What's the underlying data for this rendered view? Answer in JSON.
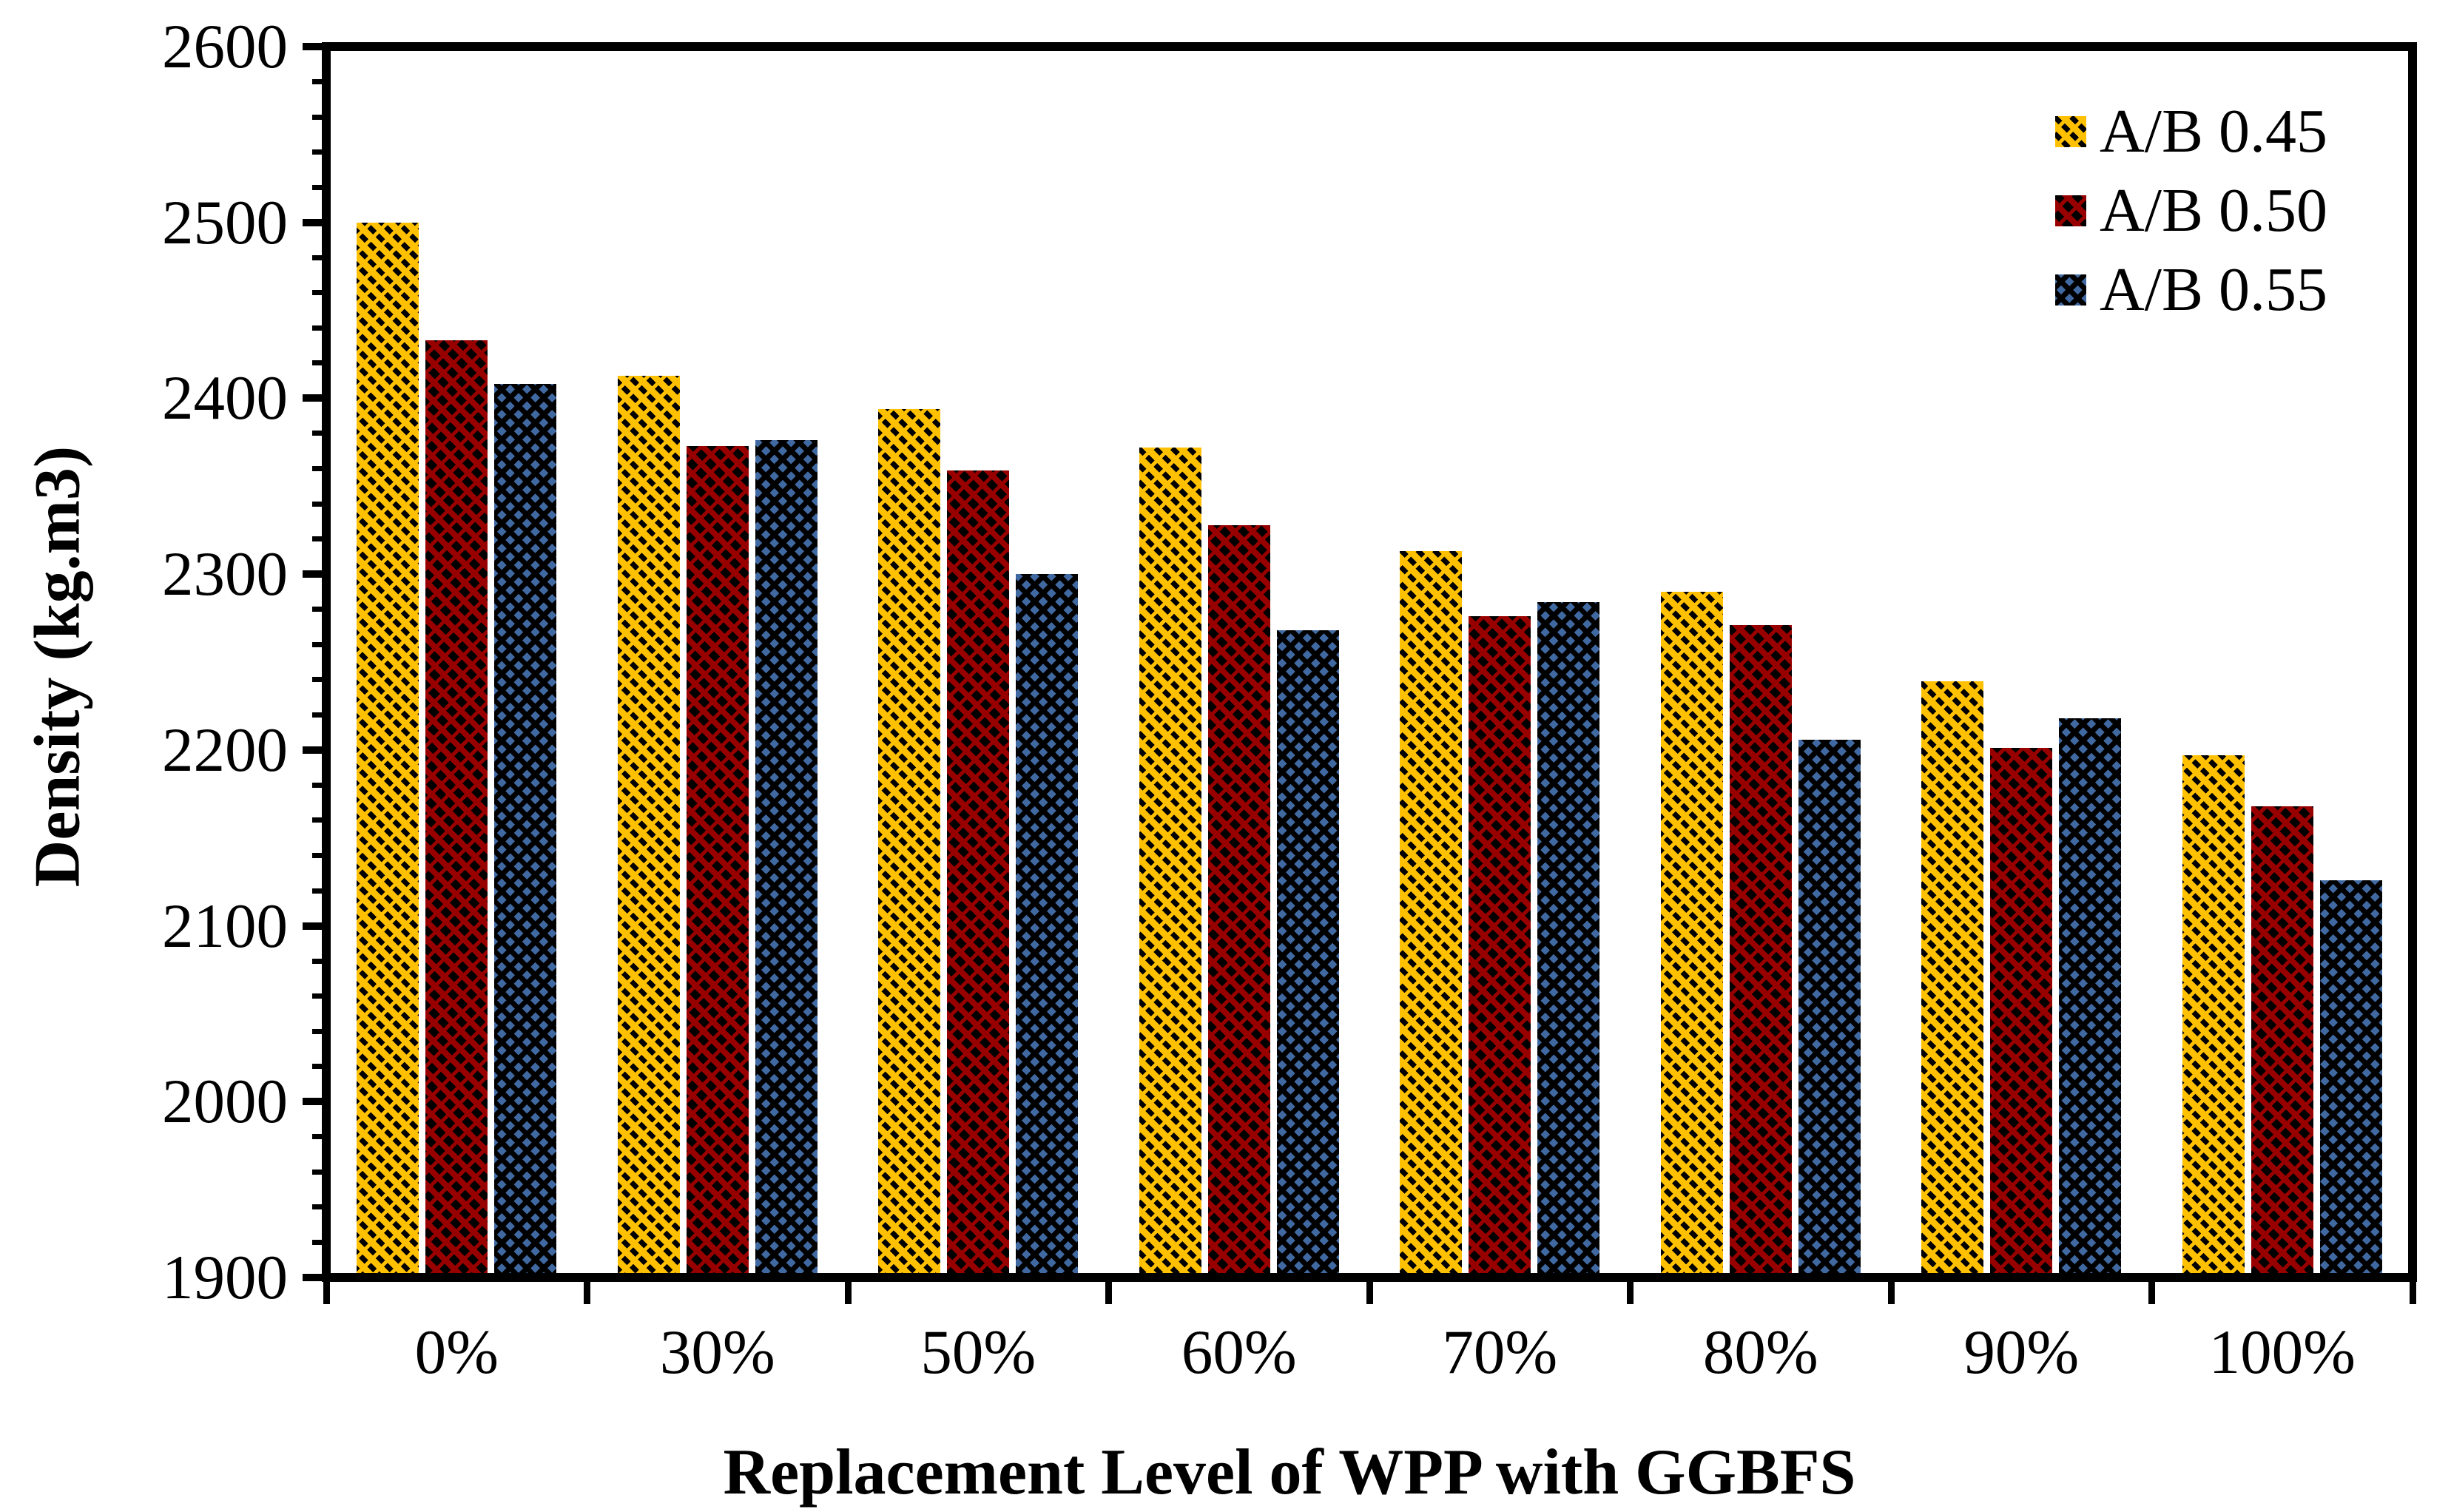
{
  "chart_data": {
    "type": "bar",
    "title": "",
    "xlabel": "Replacement Level of WPP with GGBFS",
    "ylabel": "Density (kg.m3)",
    "categories": [
      "0%",
      "30%",
      "50%",
      "60%",
      "70%",
      "80%",
      "90%",
      "100%"
    ],
    "series": [
      {
        "name": "A/B 0.45",
        "color": "#FFC000",
        "pattern": "diagonal-hatch",
        "values": [
          2500,
          2413,
          2394,
          2372,
          2313,
          2290,
          2239,
          2197
        ]
      },
      {
        "name": "A/B 0.50",
        "color": "#980000",
        "pattern": "diagonal-hatch-dense",
        "values": [
          2433,
          2373,
          2359,
          2328,
          2276,
          2271,
          2201,
          2168
        ]
      },
      {
        "name": "A/B 0.55",
        "color": "#4169A1",
        "pattern": "diamond-hatch",
        "values": [
          2408,
          2376,
          2300,
          2268,
          2284,
          2206,
          2218,
          2126
        ]
      }
    ],
    "ylim": [
      1900,
      2600
    ],
    "y_major_step": 100,
    "y_minor_step": 20,
    "y_tick_labels": [
      "1900",
      "2000",
      "2100",
      "2200",
      "2300",
      "2400",
      "2500",
      "2600"
    ],
    "legend_position": "top-right-inside",
    "grid": false,
    "axis_color": "#000000",
    "background_color": "#FFFFFF"
  }
}
